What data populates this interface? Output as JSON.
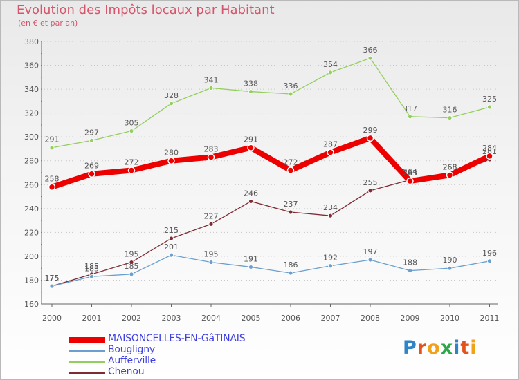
{
  "chart_data": {
    "type": "line",
    "title": "Evolution des Impôts locaux par Habitant",
    "subtitle": "(en € et par an)",
    "categories": [
      "2000",
      "2001",
      "2002",
      "2003",
      "2004",
      "2005",
      "2006",
      "2007",
      "2008",
      "2009",
      "2010",
      "2011"
    ],
    "ylim": [
      160,
      380
    ],
    "yticks": [
      160,
      180,
      200,
      220,
      240,
      260,
      280,
      300,
      320,
      340,
      360,
      380
    ],
    "grid": "horizontal dotted",
    "legend_position": "bottom-left",
    "series": [
      {
        "name": "Aufferville",
        "color": "#93cf5d",
        "values": [
          291,
          297,
          305,
          328,
          341,
          338,
          336,
          354,
          366,
          317,
          316,
          325
        ],
        "width": 1.3
      },
      {
        "name": "Chenou",
        "color": "#7f2b34",
        "values": [
          175,
          185,
          195,
          215,
          227,
          246,
          237,
          234,
          255,
          264,
          268,
          281
        ],
        "width": 1.3
      },
      {
        "name": "Bougligny",
        "color": "#6a9fcf",
        "values": [
          175,
          183,
          185,
          201,
          195,
          191,
          186,
          192,
          197,
          188,
          190,
          196
        ],
        "width": 1.3
      },
      {
        "name": "MAISONCELLES-EN-GâTINAIS",
        "color": "#ec0000",
        "values": [
          258,
          269,
          272,
          280,
          283,
          291,
          272,
          287,
          299,
          263,
          268,
          284
        ],
        "width": 8
      }
    ]
  },
  "legend": [
    {
      "label": "MAISONCELLES-EN-GâTINAIS",
      "color": "#ec0000",
      "text_color": "#3f40e0",
      "thickness": 8
    },
    {
      "label": "Bougligny",
      "color": "#6a9fcf",
      "text_color": "#3f40e0",
      "thickness": 2
    },
    {
      "label": "Aufferville",
      "color": "#93cf5d",
      "text_color": "#3f40e0",
      "thickness": 2
    },
    {
      "label": "Chenou",
      "color": "#7f2b34",
      "text_color": "#3f40e0",
      "thickness": 2
    }
  ],
  "brand": {
    "letters": [
      "P",
      "r",
      "o",
      "x",
      "i",
      "t",
      "i"
    ],
    "colors": [
      "#2f84c8",
      "#e3541d",
      "#f0a21a",
      "#2fa64a",
      "#2f84c8",
      "#e3541d",
      "#f0a21a"
    ]
  }
}
